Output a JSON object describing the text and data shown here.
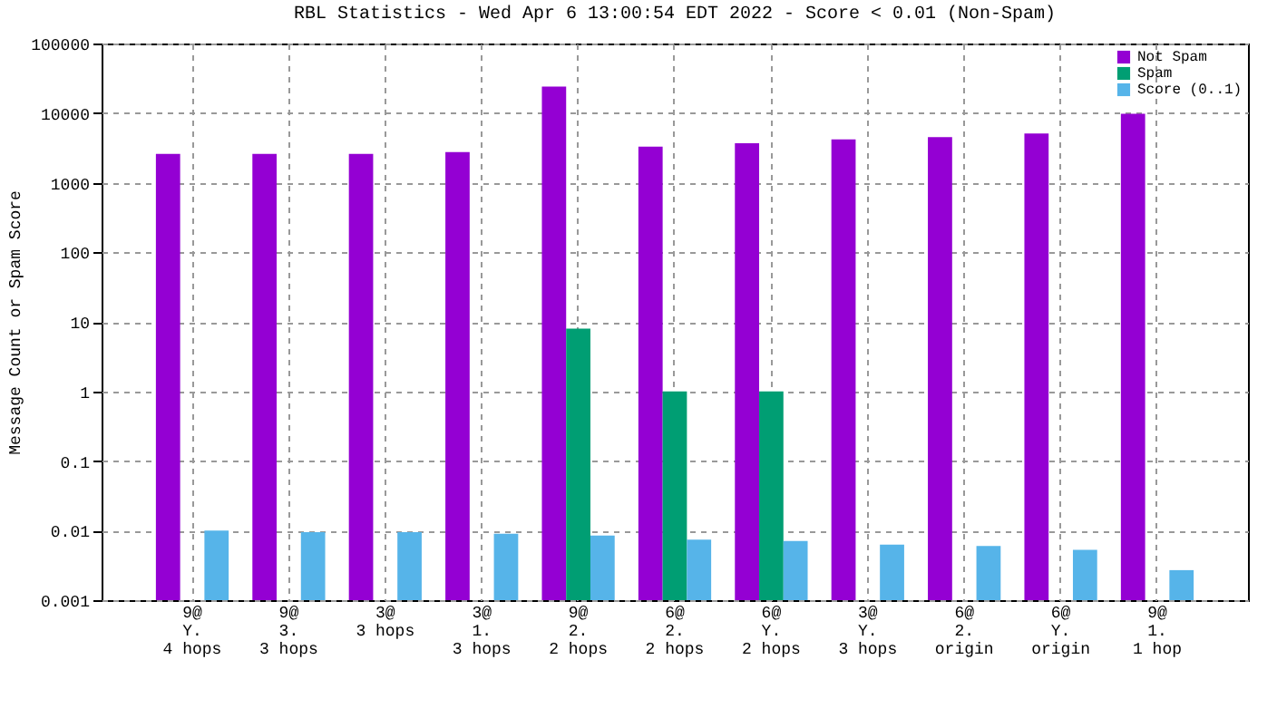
{
  "chart_data": {
    "type": "bar",
    "title": "RBL Statistics - Wed Apr  6 13:00:54 EDT 2022 - Score < 0.01 (Non-Spam)",
    "ylabel": "Message Count or Spam Score",
    "categories": [
      "9@\nY.\n4 hops",
      "9@\n3.\n3 hops",
      "3@\n3 hops",
      "3@\n1.\n3 hops",
      "9@\n2.\n2 hops",
      "6@\n2.\n2 hops",
      "6@\nY.\n2 hops",
      "3@\nY.\n3 hops",
      "6@\n2.\norigin",
      "6@\nY.\norigin",
      "9@\n1.\n1 hop"
    ],
    "series": [
      {
        "name": "Not Spam",
        "color": "#9400d3",
        "values": [
          2600,
          2600,
          2600,
          2750,
          24000,
          3300,
          3700,
          4200,
          4500,
          5100,
          9800
        ]
      },
      {
        "name": "Spam",
        "color": "#009e73",
        "values": [
          null,
          null,
          null,
          null,
          8,
          1,
          1,
          null,
          null,
          null,
          null
        ]
      },
      {
        "name": "Score (0..1)",
        "color": "#56b4e9",
        "values": [
          0.01,
          0.0095,
          0.0095,
          0.009,
          0.0085,
          0.0074,
          0.0071,
          0.0063,
          0.006,
          0.0053,
          0.0027
        ]
      }
    ],
    "log": true,
    "ylim": [
      0.001,
      100000
    ],
    "yticks": [
      0.001,
      0.01,
      0.1,
      1,
      10,
      100,
      1000,
      10000,
      100000
    ],
    "grid": true,
    "legend": "top right"
  }
}
